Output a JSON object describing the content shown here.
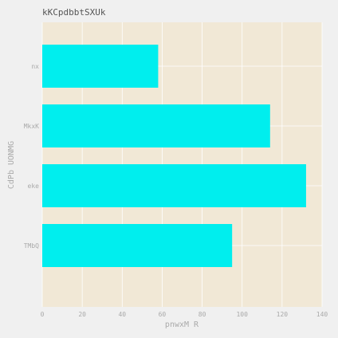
{
  "chart_data": {
    "type": "bar",
    "orientation": "horizontal",
    "title": "kKCpdbbtSXUk",
    "xlabel": "pnwxM R",
    "ylabel": "CdPb UONMG",
    "categories": [
      "nx",
      "MkxK",
      "eke",
      "TMbQ"
    ],
    "values": [
      58,
      114,
      132,
      95
    ],
    "xlim": [
      0,
      140
    ],
    "xticks": [
      0,
      20,
      40,
      60,
      80,
      100,
      120,
      140
    ],
    "grid": true,
    "colors": {
      "bar": "#00eeee",
      "plot_background": "#f1e8d6",
      "page_background": "#f0f0f0",
      "grid": "#ffffff"
    }
  }
}
